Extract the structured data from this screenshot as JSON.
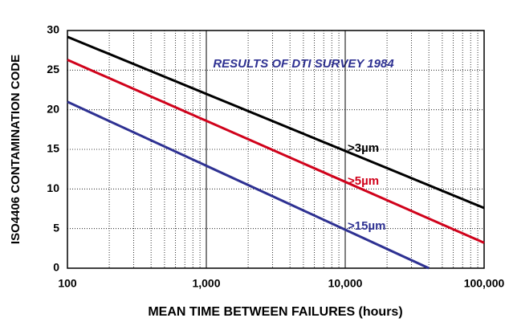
{
  "chart_data": {
    "type": "line",
    "title": "RESULTS OF DTI SURVEY 1984",
    "x_label": "MEAN TIME BETWEEN FAILURES (hours)",
    "y_label": "ISO4406 CONTAMINATION  CODE",
    "xscale": "log",
    "xlim": [
      100,
      100000
    ],
    "xticks": [
      100,
      {
        "value": 1000,
        "label": "1,000"
      },
      {
        "value": 10000,
        "label": "10,000"
      },
      {
        "value": 100000,
        "label": "100,000"
      }
    ],
    "ylim": [
      0,
      30
    ],
    "yticks": [
      0,
      5,
      10,
      15,
      20,
      25,
      30
    ],
    "grid": true,
    "series": [
      {
        "name": ">3µm",
        "color": "#000000",
        "x": [
          100,
          100000
        ],
        "values": [
          29.2,
          7.6
        ]
      },
      {
        "name": ">5µm",
        "color": "#d0021b",
        "x": [
          100,
          100000
        ],
        "values": [
          26.3,
          3.2
        ]
      },
      {
        "name": ">15µm",
        "color": "#2e3192",
        "x": [
          100,
          40000
        ],
        "values": [
          21,
          0
        ]
      }
    ]
  }
}
